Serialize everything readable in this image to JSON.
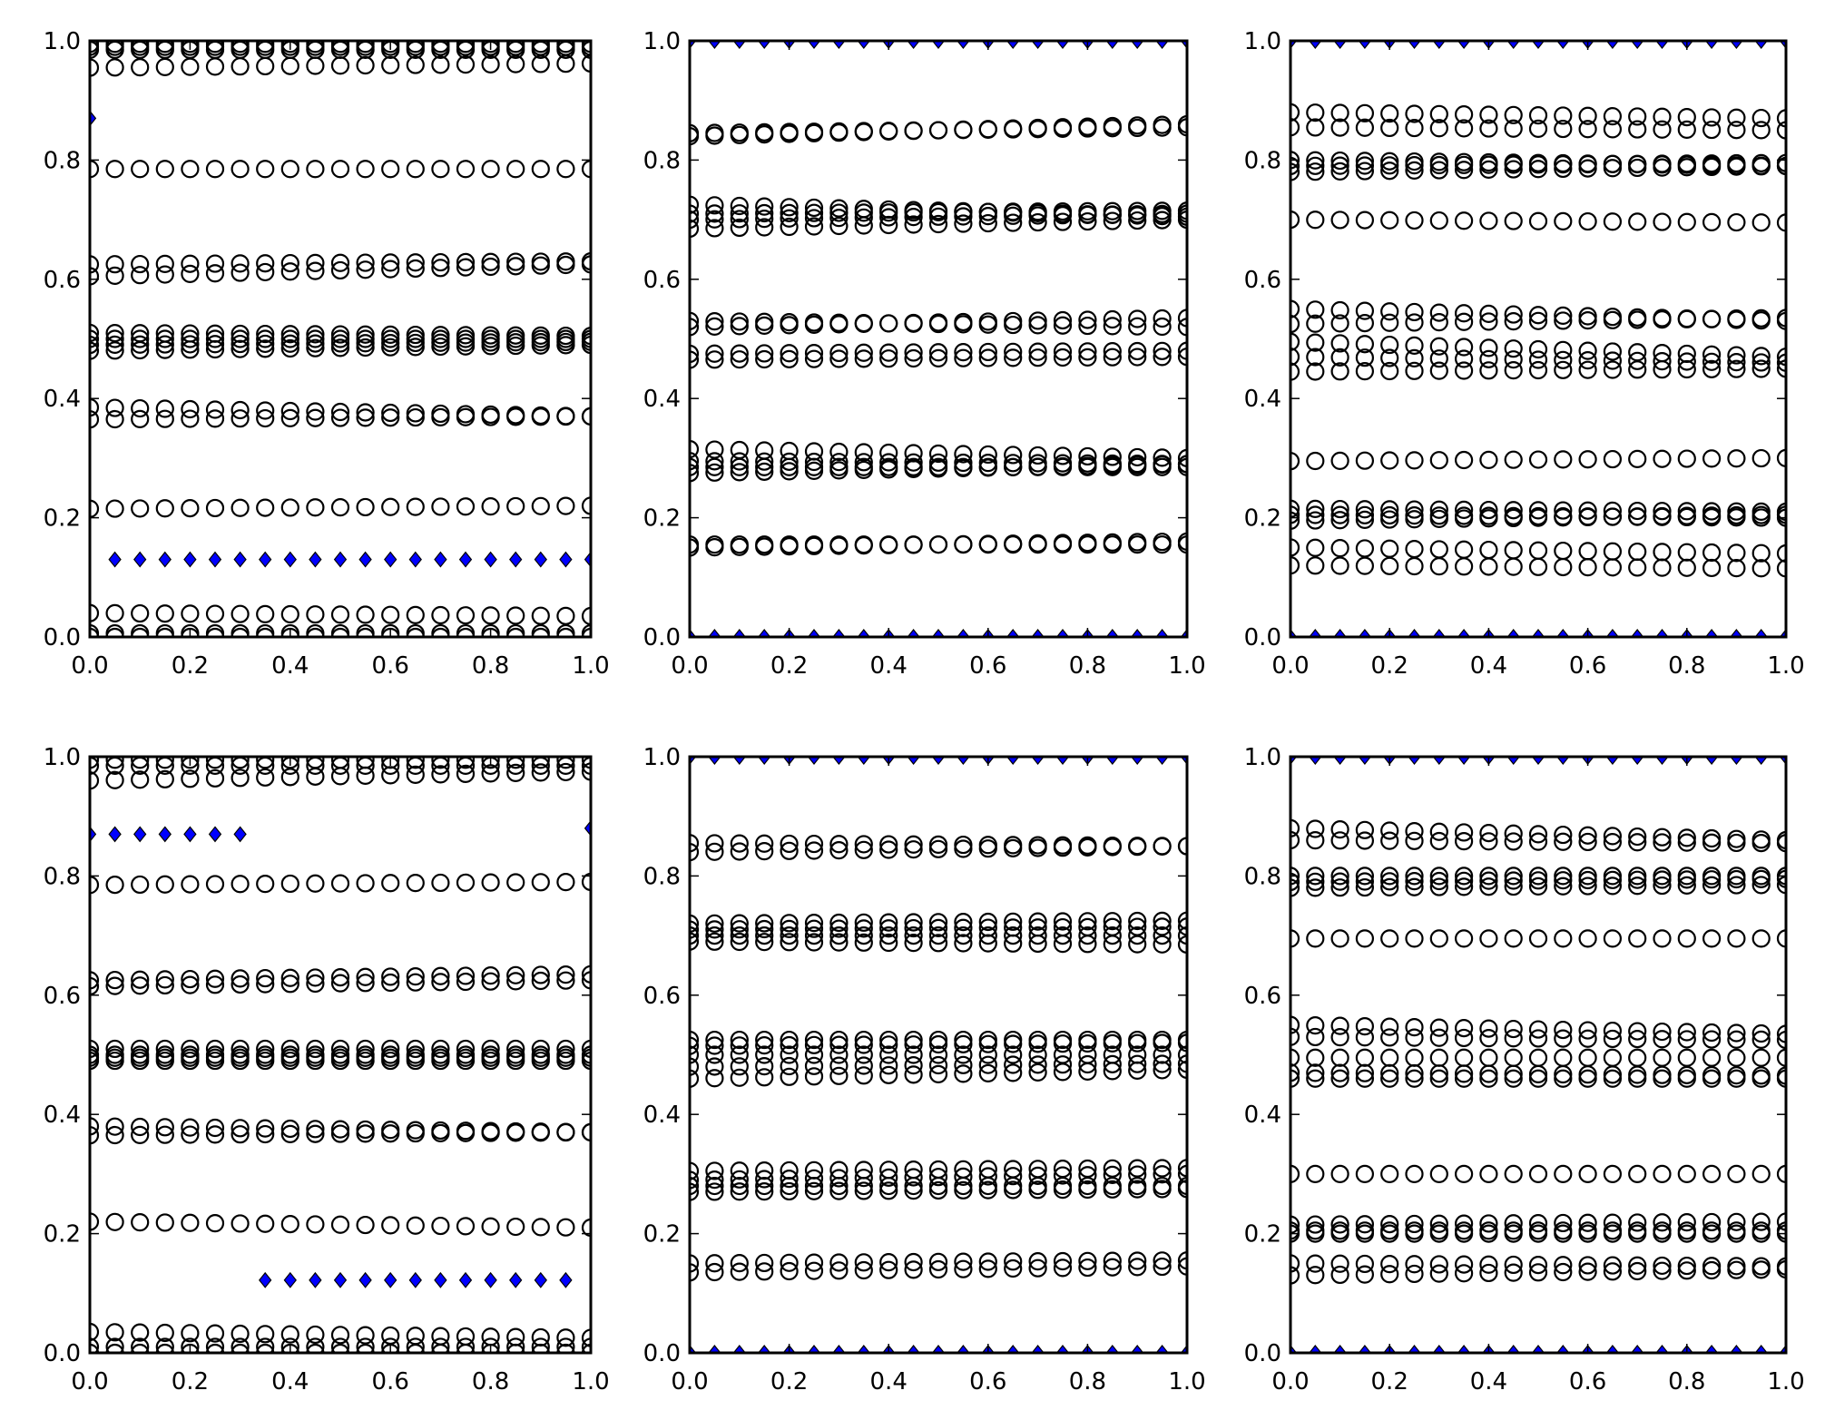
{
  "chart_data": [
    {
      "type": "scatter",
      "title": "",
      "xlabel": "",
      "ylabel": "",
      "xlim": [
        0,
        1
      ],
      "ylim": [
        0,
        1
      ],
      "xticks": [
        "0.0",
        "0.2",
        "0.4",
        "0.6",
        "0.8",
        "1.0"
      ],
      "yticks": [
        "0.0",
        "0.2",
        "0.4",
        "0.6",
        "0.8",
        "1.0"
      ],
      "x": [
        0,
        0.05,
        0.1,
        0.15,
        0.2,
        0.25,
        0.3,
        0.35,
        0.4,
        0.45,
        0.5,
        0.55,
        0.6,
        0.65,
        0.7,
        0.75,
        0.8,
        0.85,
        0.9,
        0.95,
        1.0
      ],
      "circle_series_linear": [
        [
          0.995,
          0.995
        ],
        [
          0.99,
          0.99
        ],
        [
          0.985,
          0.985
        ],
        [
          0.955,
          0.962
        ],
        [
          0.785,
          0.785
        ],
        [
          0.625,
          0.63
        ],
        [
          0.605,
          0.625
        ],
        [
          0.51,
          0.505
        ],
        [
          0.5,
          0.5
        ],
        [
          0.49,
          0.495
        ],
        [
          0.48,
          0.49
        ],
        [
          0.385,
          0.37
        ],
        [
          0.365,
          0.37
        ],
        [
          0.215,
          0.22
        ],
        [
          0.04,
          0.035
        ],
        [
          0.006,
          0.006
        ],
        [
          0.0,
          0.0
        ]
      ],
      "diamonds": [
        {
          "x": 0,
          "y": 0.87
        },
        {
          "from": 0.05,
          "to": 1.0,
          "y": 0.13
        }
      ]
    },
    {
      "type": "scatter",
      "title": "",
      "xlabel": "",
      "ylabel": "",
      "xlim": [
        0,
        1
      ],
      "ylim": [
        0,
        1
      ],
      "xticks": [
        "0.0",
        "0.2",
        "0.4",
        "0.6",
        "0.8",
        "1.0"
      ],
      "yticks": [
        "0.0",
        "0.2",
        "0.4",
        "0.6",
        "0.8",
        "1.0"
      ],
      "x": [
        0,
        0.05,
        0.1,
        0.15,
        0.2,
        0.25,
        0.3,
        0.35,
        0.4,
        0.45,
        0.5,
        0.55,
        0.6,
        0.65,
        0.7,
        0.75,
        0.8,
        0.85,
        0.9,
        0.95,
        1.0
      ],
      "circle_series_linear": [
        [
          0.845,
          0.855
        ],
        [
          0.84,
          0.86
        ],
        [
          0.725,
          0.705
        ],
        [
          0.71,
          0.715
        ],
        [
          0.7,
          0.71
        ],
        [
          0.685,
          0.7
        ],
        [
          0.53,
          0.52
        ],
        [
          0.52,
          0.535
        ],
        [
          0.475,
          0.48
        ],
        [
          0.465,
          0.47
        ],
        [
          0.315,
          0.3
        ],
        [
          0.295,
          0.29
        ],
        [
          0.285,
          0.285
        ],
        [
          0.275,
          0.29
        ],
        [
          0.155,
          0.155
        ],
        [
          0.15,
          0.16
        ]
      ],
      "diamonds": [
        {
          "from": 0,
          "to": 1.0,
          "y": 1.0
        },
        {
          "from": 0,
          "to": 1.0,
          "y": 0.0
        }
      ]
    },
    {
      "type": "scatter",
      "title": "",
      "xlabel": "",
      "ylabel": "",
      "xlim": [
        0,
        1
      ],
      "ylim": [
        0,
        1
      ],
      "xticks": [
        "0.0",
        "0.2",
        "0.4",
        "0.6",
        "0.8",
        "1.0"
      ],
      "yticks": [
        "0.0",
        "0.2",
        "0.4",
        "0.6",
        "0.8",
        "1.0"
      ],
      "x": [
        0,
        0.05,
        0.1,
        0.15,
        0.2,
        0.25,
        0.3,
        0.35,
        0.4,
        0.45,
        0.5,
        0.55,
        0.6,
        0.65,
        0.7,
        0.75,
        0.8,
        0.85,
        0.9,
        0.95,
        1.0
      ],
      "circle_series_linear": [
        [
          0.88,
          0.87
        ],
        [
          0.855,
          0.85
        ],
        [
          0.8,
          0.79
        ],
        [
          0.79,
          0.795
        ],
        [
          0.78,
          0.79
        ],
        [
          0.7,
          0.695
        ],
        [
          0.55,
          0.53
        ],
        [
          0.525,
          0.535
        ],
        [
          0.495,
          0.47
        ],
        [
          0.47,
          0.46
        ],
        [
          0.445,
          0.45
        ],
        [
          0.295,
          0.3
        ],
        [
          0.215,
          0.21
        ],
        [
          0.205,
          0.2
        ],
        [
          0.195,
          0.205
        ],
        [
          0.15,
          0.14
        ],
        [
          0.12,
          0.115
        ]
      ],
      "diamonds": [
        {
          "from": 0,
          "to": 1.0,
          "y": 1.0
        },
        {
          "from": 0,
          "to": 1.0,
          "y": 0.0
        }
      ]
    },
    {
      "type": "scatter",
      "title": "",
      "xlabel": "",
      "ylabel": "",
      "xlim": [
        0,
        1
      ],
      "ylim": [
        0,
        1
      ],
      "xticks": [
        "0.0",
        "0.2",
        "0.4",
        "0.6",
        "0.8",
        "1.0"
      ],
      "yticks": [
        "0.0",
        "0.2",
        "0.4",
        "0.6",
        "0.8",
        "1.0"
      ],
      "x": [
        0,
        0.05,
        0.1,
        0.15,
        0.2,
        0.25,
        0.3,
        0.35,
        0.4,
        0.45,
        0.5,
        0.55,
        0.6,
        0.65,
        0.7,
        0.75,
        0.8,
        0.85,
        0.9,
        0.95,
        1.0
      ],
      "circle_series_linear": [
        [
          0.995,
          0.995
        ],
        [
          0.985,
          0.985
        ],
        [
          0.96,
          0.975
        ],
        [
          0.785,
          0.79
        ],
        [
          0.625,
          0.635
        ],
        [
          0.615,
          0.625
        ],
        [
          0.51,
          0.51
        ],
        [
          0.5,
          0.5
        ],
        [
          0.49,
          0.49
        ],
        [
          0.495,
          0.495
        ],
        [
          0.38,
          0.37
        ],
        [
          0.365,
          0.37
        ],
        [
          0.22,
          0.21
        ],
        [
          0.035,
          0.025
        ],
        [
          0.01,
          0.01
        ],
        [
          0.0,
          0.0
        ]
      ],
      "diamonds": [
        {
          "from": 0,
          "to": 0.3,
          "y": 0.87
        },
        {
          "from": 0.35,
          "to": 0.95,
          "y": 0.122
        },
        {
          "x": 1.0,
          "y": 0.88
        }
      ]
    },
    {
      "type": "scatter",
      "title": "",
      "xlabel": "",
      "ylabel": "",
      "xlim": [
        0,
        1
      ],
      "ylim": [
        0,
        1
      ],
      "xticks": [
        "0.0",
        "0.2",
        "0.4",
        "0.6",
        "0.8",
        "1.0"
      ],
      "yticks": [
        "0.0",
        "0.2",
        "0.4",
        "0.6",
        "0.8",
        "1.0"
      ],
      "x": [
        0,
        0.05,
        0.1,
        0.15,
        0.2,
        0.25,
        0.3,
        0.35,
        0.4,
        0.45,
        0.5,
        0.55,
        0.6,
        0.65,
        0.7,
        0.75,
        0.8,
        0.85,
        0.9,
        0.95,
        1.0
      ],
      "circle_series_linear": [
        [
          0.855,
          0.85
        ],
        [
          0.84,
          0.85
        ],
        [
          0.72,
          0.725
        ],
        [
          0.71,
          0.715
        ],
        [
          0.7,
          0.7
        ],
        [
          0.69,
          0.685
        ],
        [
          0.525,
          0.525
        ],
        [
          0.515,
          0.52
        ],
        [
          0.5,
          0.5
        ],
        [
          0.48,
          0.485
        ],
        [
          0.46,
          0.475
        ],
        [
          0.305,
          0.31
        ],
        [
          0.29,
          0.3
        ],
        [
          0.28,
          0.28
        ],
        [
          0.27,
          0.275
        ],
        [
          0.15,
          0.155
        ],
        [
          0.135,
          0.145
        ]
      ],
      "diamonds": [
        {
          "from": 0,
          "to": 1.0,
          "y": 1.0
        },
        {
          "from": 0,
          "to": 1.0,
          "y": 0.0
        }
      ]
    },
    {
      "type": "scatter",
      "title": "",
      "xlabel": "",
      "ylabel": "",
      "xlim": [
        0,
        1
      ],
      "ylim": [
        0,
        1
      ],
      "xticks": [
        "0.0",
        "0.2",
        "0.4",
        "0.6",
        "0.8",
        "1.0"
      ],
      "yticks": [
        "0.0",
        "0.2",
        "0.4",
        "0.6",
        "0.8",
        "1.0"
      ],
      "x": [
        0,
        0.05,
        0.1,
        0.15,
        0.2,
        0.25,
        0.3,
        0.35,
        0.4,
        0.45,
        0.5,
        0.55,
        0.6,
        0.65,
        0.7,
        0.75,
        0.8,
        0.85,
        0.9,
        0.95,
        1.0
      ],
      "circle_series_linear": [
        [
          0.88,
          0.86
        ],
        [
          0.86,
          0.855
        ],
        [
          0.8,
          0.8
        ],
        [
          0.79,
          0.795
        ],
        [
          0.78,
          0.785
        ],
        [
          0.695,
          0.695
        ],
        [
          0.55,
          0.535
        ],
        [
          0.53,
          0.525
        ],
        [
          0.495,
          0.495
        ],
        [
          0.47,
          0.465
        ],
        [
          0.46,
          0.46
        ],
        [
          0.3,
          0.3
        ],
        [
          0.215,
          0.22
        ],
        [
          0.205,
          0.205
        ],
        [
          0.2,
          0.2
        ],
        [
          0.15,
          0.145
        ],
        [
          0.13,
          0.14
        ]
      ],
      "diamonds": [
        {
          "from": 0,
          "to": 1.0,
          "y": 1.0
        },
        {
          "from": 0,
          "to": 1.0,
          "y": 0.0
        }
      ]
    }
  ],
  "colors": {
    "diamond": "#0000ff",
    "circle_edge": "#000000",
    "frame": "#000000"
  }
}
